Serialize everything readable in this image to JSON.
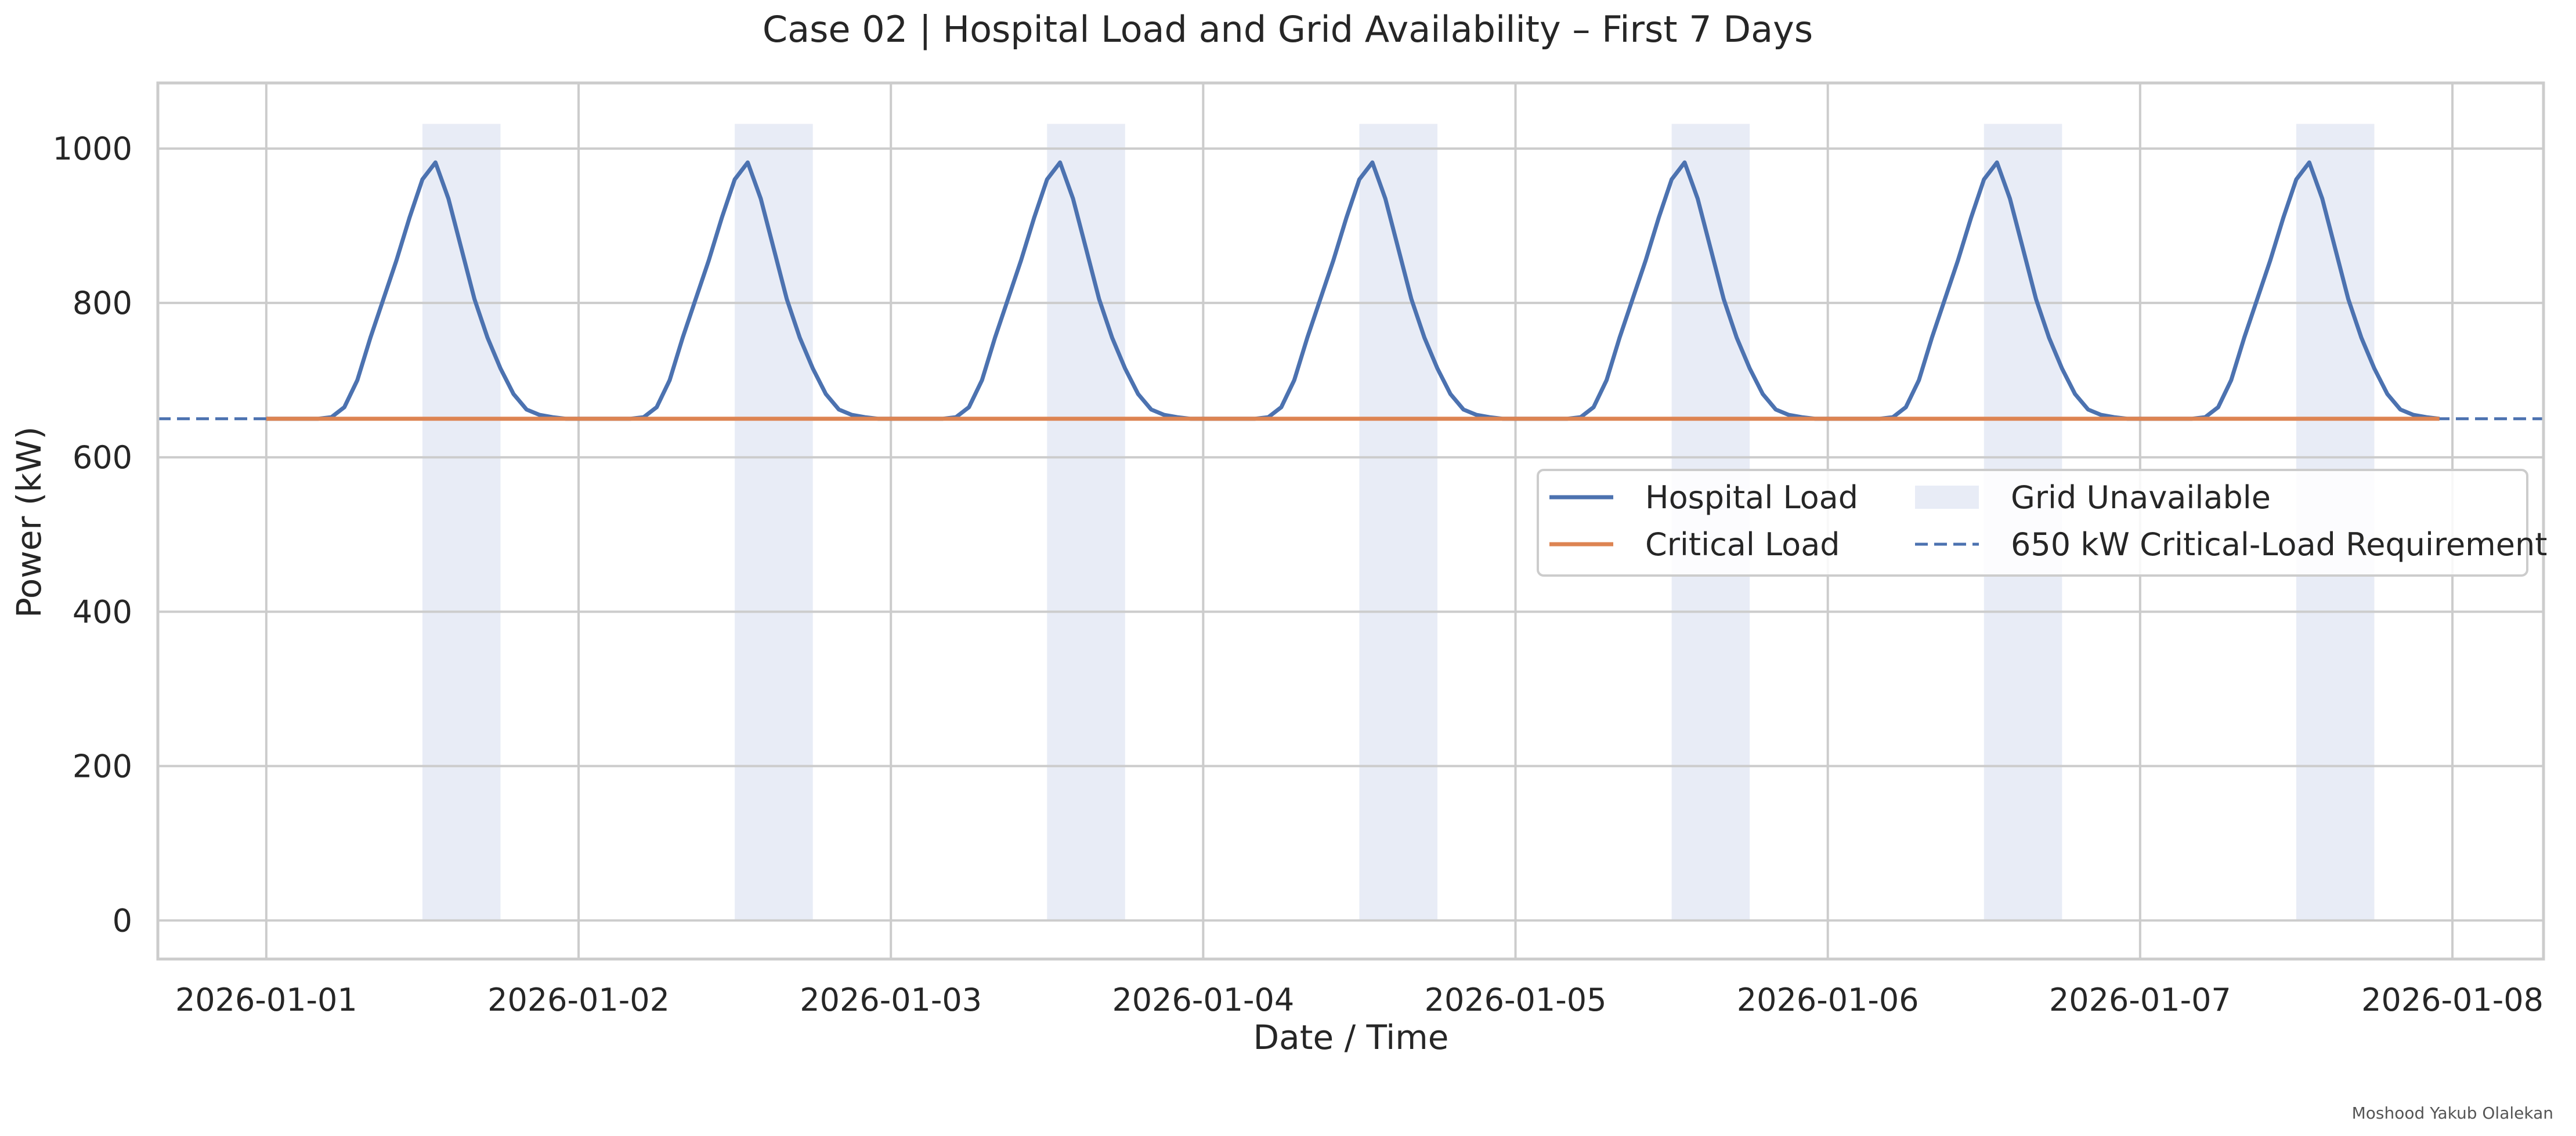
{
  "chart_data": {
    "type": "line",
    "title": "Case 02 | Hospital Load and Grid Availability – First 7 Days",
    "xlabel": "Date / Time",
    "ylabel": "Power (kW)",
    "credit": "Moshood Yakub Olalekan",
    "grid": true,
    "legend_position": "center-right",
    "xlim": [
      "2025-12-31T15:40",
      "2026-01-08T07:00"
    ],
    "ylim": [
      -50,
      1085
    ],
    "x_ticks": [
      "2026-01-01",
      "2026-01-02",
      "2026-01-03",
      "2026-01-04",
      "2026-01-05",
      "2026-01-06",
      "2026-01-07",
      "2026-01-08"
    ],
    "y_ticks": [
      0,
      200,
      400,
      600,
      800,
      1000
    ],
    "daily_profile_hours": [
      0,
      1,
      2,
      3,
      4,
      5,
      6,
      7,
      8,
      9,
      10,
      11,
      12,
      13,
      14,
      15,
      16,
      17,
      18,
      19,
      20,
      21,
      22,
      23
    ],
    "series": [
      {
        "name": "Hospital Load",
        "color": "#4c72b0",
        "style": "solid",
        "repeat_days": [
          "2026-01-01",
          "2026-01-02",
          "2026-01-03",
          "2026-01-04",
          "2026-01-05",
          "2026-01-06",
          "2026-01-07"
        ],
        "daily_values": [
          650,
          650,
          650,
          650,
          650,
          652,
          665,
          700,
          755,
          805,
          855,
          910,
          960,
          982,
          935,
          870,
          805,
          755,
          715,
          682,
          662,
          655,
          652,
          650
        ]
      },
      {
        "name": "Critical Load",
        "color": "#dd8452",
        "style": "solid",
        "x": [
          "2026-01-01T00:00",
          "2026-01-07T23:00"
        ],
        "values": [
          650,
          650
        ]
      }
    ],
    "reference_line": {
      "name": "650 kW Critical-Load Requirement",
      "y": 650,
      "color": "#4c72b0",
      "style": "dashed"
    },
    "shaded_regions": {
      "name": "Grid Unavailable",
      "color": "#e8ecf6",
      "y_top": 1032,
      "ranges": [
        [
          "2026-01-01T12:00",
          "2026-01-01T18:00"
        ],
        [
          "2026-01-02T12:00",
          "2026-01-02T18:00"
        ],
        [
          "2026-01-03T12:00",
          "2026-01-03T18:00"
        ],
        [
          "2026-01-04T12:00",
          "2026-01-04T18:00"
        ],
        [
          "2026-01-05T12:00",
          "2026-01-05T18:00"
        ],
        [
          "2026-01-06T12:00",
          "2026-01-06T18:00"
        ],
        [
          "2026-01-07T12:00",
          "2026-01-07T18:00"
        ]
      ]
    },
    "legend": [
      {
        "label": "Hospital Load",
        "kind": "line",
        "color": "#4c72b0"
      },
      {
        "label": "Critical Load",
        "kind": "line",
        "color": "#dd8452"
      },
      {
        "label": "Grid Unavailable",
        "kind": "patch",
        "color": "#e8ecf6"
      },
      {
        "label": "650 kW Critical-Load Requirement",
        "kind": "dashed",
        "color": "#4c72b0"
      }
    ]
  }
}
